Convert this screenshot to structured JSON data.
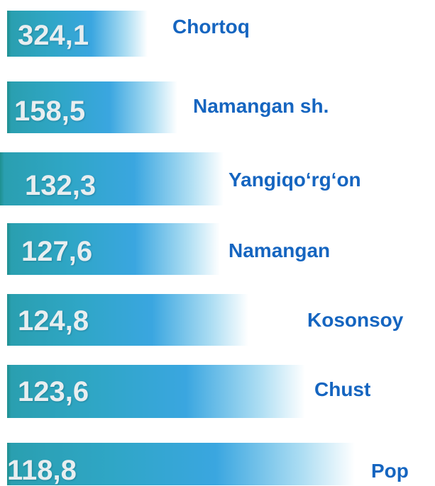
{
  "items": [
    {
      "value": "324,1",
      "name": "Chortoq"
    },
    {
      "value": "158,5",
      "name": "Namangan sh."
    },
    {
      "value": "132,3",
      "name": "Yangiqo‘rg‘on"
    },
    {
      "value": "127,6",
      "name": "Namangan"
    },
    {
      "value": "124,8",
      "name": "Kosonsoy"
    },
    {
      "value": "123,6",
      "name": "Chust"
    },
    {
      "value": "118,8",
      "name": "Pop"
    }
  ]
}
